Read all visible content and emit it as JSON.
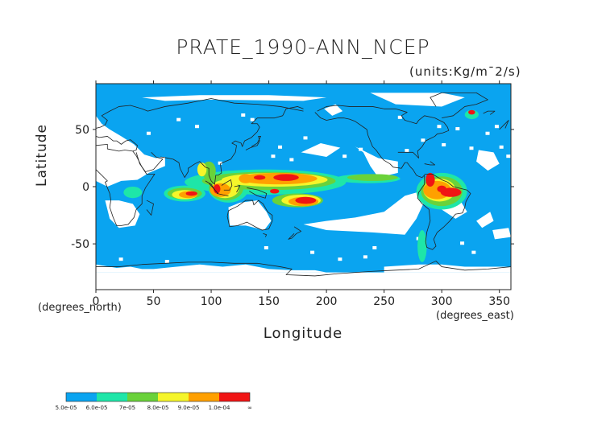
{
  "title": "PRATE_1990-ANN_NCEP",
  "units": "(units:Kg/m¯2/s)",
  "x_axis_label": "Longitude",
  "y_axis_label": "Latitude",
  "x_suffix": "(degrees_east)",
  "y_suffix": "(degrees_north)",
  "colors": {
    "c1": "#0aa4f0",
    "c2": "#1ee6a8",
    "c3": "#6ad23a",
    "c4": "#f5f52a",
    "c5": "#ffa000",
    "c6": "#f01414",
    "land_outline": "#222222",
    "background": "#ffffff"
  },
  "chart_data": {
    "type": "heatmap",
    "title": "PRATE_1990-ANN_NCEP",
    "xlabel": "Longitude",
    "ylabel": "Latitude",
    "xlim": [
      0,
      360
    ],
    "ylim": [
      -90,
      90
    ],
    "x_ticks": [
      0,
      50,
      100,
      150,
      200,
      250,
      300,
      350
    ],
    "y_ticks": [
      -50,
      0,
      50
    ],
    "colorbar": {
      "boundaries": [
        "5.0e-05",
        "6.0e-05",
        "7e-05",
        "8.0e-05",
        "9.0e-05",
        "1.0e-04",
        "∞"
      ],
      "color_keys": [
        "c1",
        "c2",
        "c3",
        "c4",
        "c5",
        "c6"
      ]
    },
    "notable_maxima": [
      {
        "lon": 165,
        "lat": 8,
        "level": "c6"
      },
      {
        "lon": 180,
        "lat": -12,
        "level": "c6"
      },
      {
        "lon": 105,
        "lat": -2,
        "level": "c6"
      },
      {
        "lon": 80,
        "lat": -8,
        "level": "c6"
      },
      {
        "lon": 290,
        "lat": 5,
        "level": "c6"
      },
      {
        "lon": 310,
        "lat": -5,
        "level": "c6"
      },
      {
        "lon": 325,
        "lat": 65,
        "level": "c6"
      }
    ]
  }
}
